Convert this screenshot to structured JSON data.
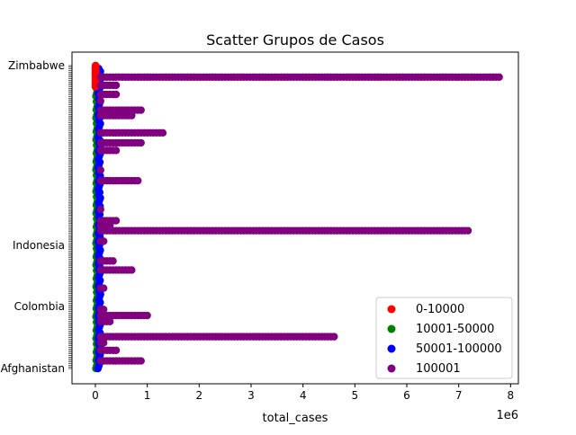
{
  "chart_data": {
    "type": "scatter",
    "title": "Scatter Grupos de Casos",
    "xlabel": "total_cases",
    "ylabel": "",
    "x_offset_label": "1e6",
    "xlim": [
      -0.45,
      8.15
    ],
    "x_ticks": [
      0,
      1,
      2,
      3,
      4,
      5,
      6,
      7,
      8
    ],
    "x_tick_labels": [
      "0",
      "1",
      "2",
      "3",
      "4",
      "5",
      "6",
      "7",
      "8"
    ],
    "grid": false,
    "legend_placement": "lower-right",
    "y_tick_labels_visible": [
      "Zimbabwe",
      "Indonesia",
      "Colombia",
      "Afghanistan"
    ],
    "series": [
      {
        "name": "0-10000",
        "color": "#ff0000",
        "x_range": [
          0,
          0.01
        ],
        "y_range": [
          0.93,
          1.0
        ]
      },
      {
        "name": "10001-50000",
        "color": "#008000",
        "x_range": [
          0.01,
          0.05
        ],
        "y_range": [
          0.0,
          0.98
        ]
      },
      {
        "name": "50001-100000",
        "color": "#0000ff",
        "x_range": [
          0.05,
          0.1
        ],
        "y_range": [
          0.0,
          0.99
        ]
      },
      {
        "name": "100001",
        "color": "#800080",
        "bands": [
          {
            "y": 0.962,
            "xmax": 7.78
          },
          {
            "y": 0.935,
            "xmax": 0.4
          },
          {
            "y": 0.905,
            "xmax": 0.4
          },
          {
            "y": 0.883,
            "xmax": 0.15
          },
          {
            "y": 0.853,
            "xmax": 0.9
          },
          {
            "y": 0.835,
            "xmax": 0.7
          },
          {
            "y": 0.778,
            "xmax": 1.3
          },
          {
            "y": 0.745,
            "xmax": 0.9
          },
          {
            "y": 0.72,
            "xmax": 0.4
          },
          {
            "y": 0.655,
            "xmax": 0.15
          },
          {
            "y": 0.62,
            "xmax": 0.85
          },
          {
            "y": 0.525,
            "xmax": 0.15
          },
          {
            "y": 0.488,
            "xmax": 0.45
          },
          {
            "y": 0.47,
            "xmax": 0.3
          },
          {
            "y": 0.455,
            "xmax": 7.2
          },
          {
            "y": 0.42,
            "xmax": 0.2
          },
          {
            "y": 0.355,
            "xmax": 0.35
          },
          {
            "y": 0.325,
            "xmax": 0.7
          },
          {
            "y": 0.265,
            "xmax": 0.2
          },
          {
            "y": 0.195,
            "xmax": 0.2
          },
          {
            "y": 0.175,
            "xmax": 1.0
          },
          {
            "y": 0.155,
            "xmax": 0.3
          },
          {
            "y": 0.105,
            "xmax": 4.6
          },
          {
            "y": 0.085,
            "xmax": 0.2
          },
          {
            "y": 0.06,
            "xmax": 0.4
          },
          {
            "y": 0.025,
            "xmax": 0.9
          }
        ]
      }
    ]
  }
}
